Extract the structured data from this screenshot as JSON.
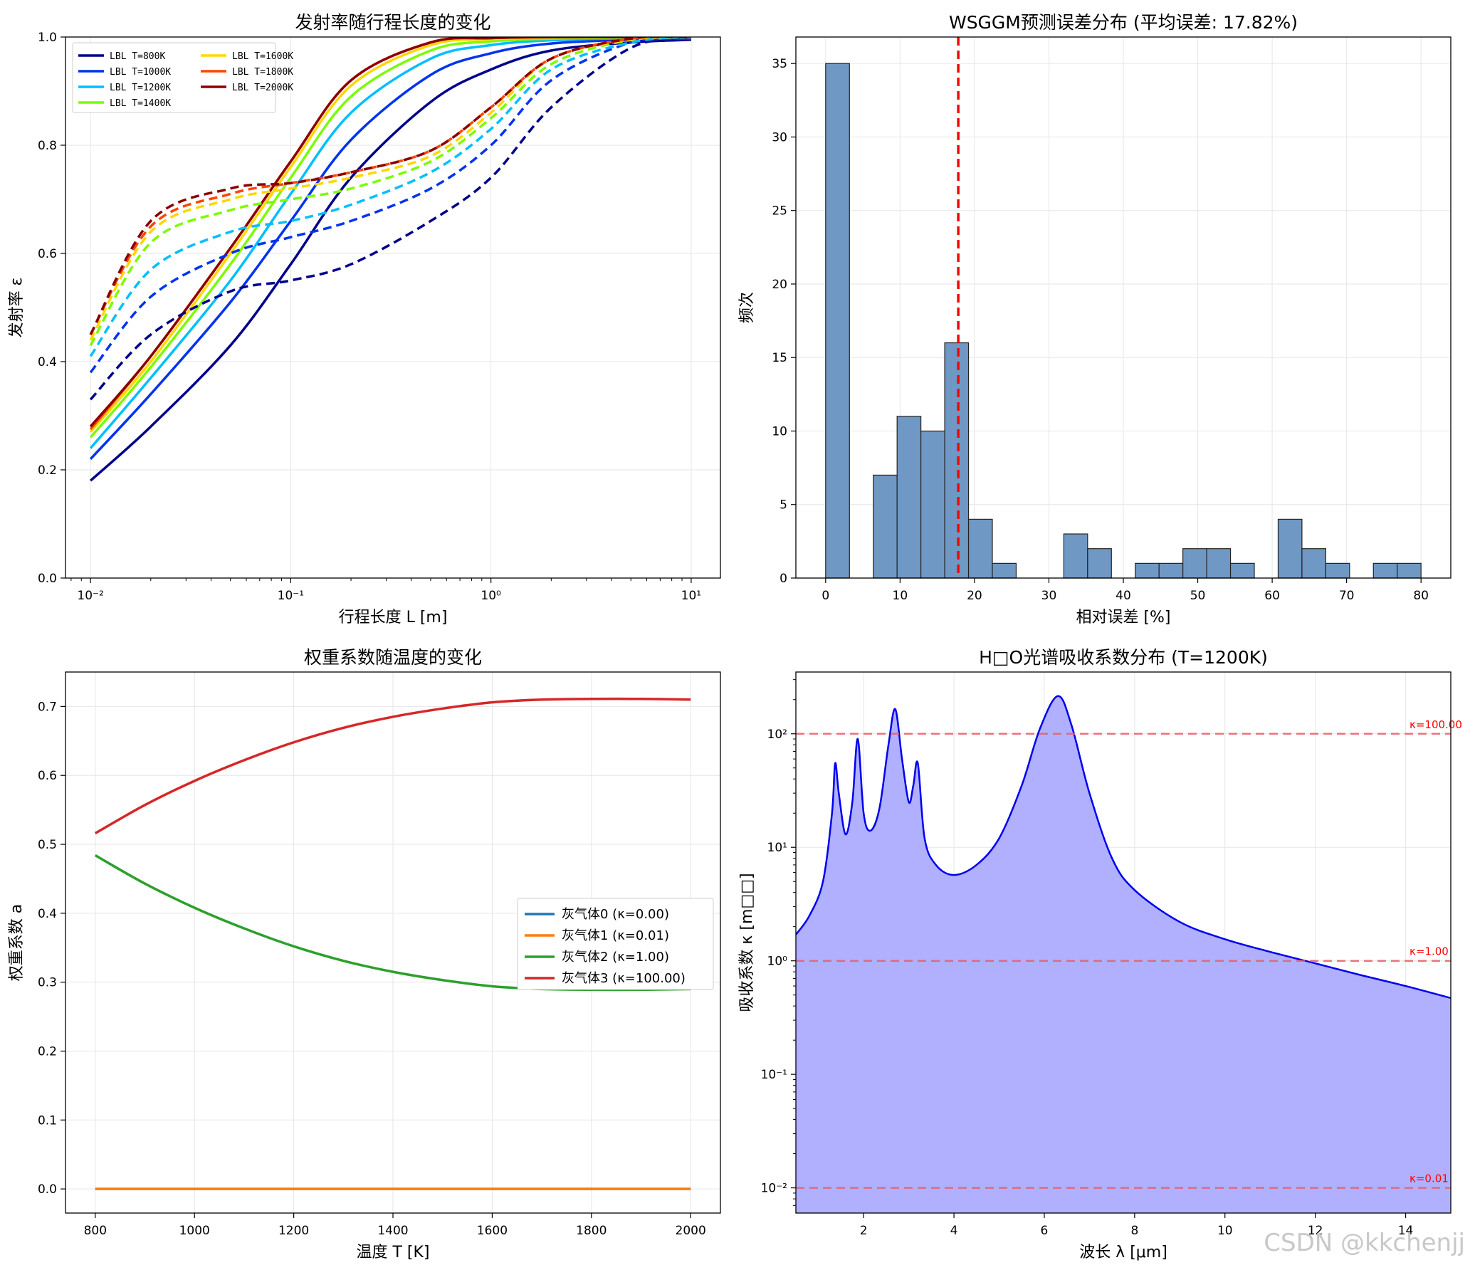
{
  "watermark": "CSDN @kkchenjj",
  "chart_data": [
    {
      "type": "line",
      "title": "发射率随行程长度的变化",
      "xlabel": "行程长度 L [m]",
      "ylabel": "发射率 ε",
      "xscale": "log",
      "xlim": [
        0.0075,
        14
      ],
      "ylim": [
        0,
        1
      ],
      "xticks": [
        0.01,
        0.1,
        1,
        10
      ],
      "xticklabels": [
        "10⁻²",
        "10⁻¹",
        "10⁰",
        "10¹"
      ],
      "yticks": [
        0,
        0.2,
        0.4,
        0.6,
        0.8,
        1.0
      ],
      "yticklabels": [
        "0.0",
        "0.2",
        "0.4",
        "0.6",
        "0.8",
        "1.0"
      ],
      "grid": true,
      "legend_position": "upper-left",
      "legend_columns": 2,
      "x": [
        0.01,
        0.02,
        0.05,
        0.1,
        0.2,
        0.5,
        1,
        2,
        5,
        10
      ],
      "series": [
        {
          "name": "LBL T=800K",
          "color": "#00008b",
          "style": "solid",
          "values": [
            0.18,
            0.28,
            0.43,
            0.58,
            0.74,
            0.88,
            0.94,
            0.975,
            0.99,
            0.995
          ]
        },
        {
          "name": "LBL T=1000K",
          "color": "#0033ee",
          "style": "solid",
          "values": [
            0.22,
            0.34,
            0.51,
            0.66,
            0.81,
            0.93,
            0.97,
            0.988,
            0.995,
            0.997
          ]
        },
        {
          "name": "LBL T=1200K",
          "color": "#00bfff",
          "style": "solid",
          "values": [
            0.24,
            0.37,
            0.55,
            0.71,
            0.86,
            0.96,
            0.985,
            0.994,
            0.998,
            0.999
          ]
        },
        {
          "name": "LBL T=1400K",
          "color": "#7cfc00",
          "style": "solid",
          "values": [
            0.26,
            0.39,
            0.58,
            0.74,
            0.89,
            0.975,
            0.992,
            0.997,
            0.999,
            1.0
          ]
        },
        {
          "name": "LBL T=1600K",
          "color": "#ffd700",
          "style": "solid",
          "values": [
            0.27,
            0.4,
            0.6,
            0.76,
            0.91,
            0.985,
            0.996,
            0.999,
            1.0,
            1.0
          ]
        },
        {
          "name": "LBL T=1800K",
          "color": "#ff4500",
          "style": "solid",
          "values": [
            0.275,
            0.41,
            0.61,
            0.77,
            0.92,
            0.99,
            0.998,
            1.0,
            1.0,
            1.0
          ]
        },
        {
          "name": "LBL T=2000K",
          "color": "#8b0000",
          "style": "solid",
          "values": [
            0.28,
            0.41,
            0.61,
            0.77,
            0.92,
            0.99,
            0.998,
            1.0,
            1.0,
            1.0
          ]
        },
        {
          "name": "",
          "color": "#00008b",
          "style": "dashed",
          "values": [
            0.33,
            0.45,
            0.53,
            0.55,
            0.58,
            0.66,
            0.74,
            0.87,
            0.98,
            1.0
          ]
        },
        {
          "name": "",
          "color": "#0033ee",
          "style": "dashed",
          "values": [
            0.38,
            0.52,
            0.6,
            0.63,
            0.66,
            0.72,
            0.8,
            0.92,
            0.99,
            1.0
          ]
        },
        {
          "name": "",
          "color": "#00bfff",
          "style": "dashed",
          "values": [
            0.41,
            0.57,
            0.64,
            0.66,
            0.69,
            0.75,
            0.83,
            0.94,
            0.99,
            1.0
          ]
        },
        {
          "name": "",
          "color": "#7cfc00",
          "style": "dashed",
          "values": [
            0.43,
            0.62,
            0.68,
            0.7,
            0.72,
            0.77,
            0.85,
            0.95,
            0.995,
            1.0
          ]
        },
        {
          "name": "",
          "color": "#ffd700",
          "style": "dashed",
          "values": [
            0.44,
            0.64,
            0.7,
            0.72,
            0.74,
            0.78,
            0.86,
            0.96,
            0.995,
            1.0
          ]
        },
        {
          "name": "",
          "color": "#ff4500",
          "style": "dashed",
          "values": [
            0.45,
            0.65,
            0.71,
            0.73,
            0.75,
            0.79,
            0.87,
            0.96,
            0.997,
            1.0
          ]
        },
        {
          "name": "",
          "color": "#8b0000",
          "style": "dashed",
          "values": [
            0.45,
            0.66,
            0.72,
            0.73,
            0.75,
            0.79,
            0.87,
            0.96,
            0.997,
            1.0
          ]
        }
      ]
    },
    {
      "type": "bar",
      "title": "WSGGM预测误差分布 (平均误差: 17.82%)",
      "xlabel": "相对误差 [%]",
      "ylabel": "频次",
      "xlim": [
        -4,
        84
      ],
      "ylim": [
        0,
        36.8
      ],
      "xticks": [
        0,
        10,
        20,
        30,
        40,
        50,
        60,
        70,
        80
      ],
      "yticks": [
        0,
        5,
        10,
        15,
        20,
        25,
        30,
        35
      ],
      "grid": true,
      "bar_color": "#6f99c4",
      "bin_width": 3.2,
      "bin_starts": [
        0,
        3.2,
        6.4,
        9.6,
        12.8,
        16.0,
        19.2,
        22.4,
        25.6,
        28.8,
        32.0,
        35.2,
        38.4,
        41.6,
        44.8,
        48.0,
        51.2,
        54.4,
        57.6,
        60.8,
        64.0,
        67.2,
        70.4,
        73.6,
        76.8
      ],
      "values": [
        35,
        0,
        7,
        11,
        10,
        16,
        4,
        1,
        0,
        0,
        3,
        2,
        0,
        1,
        1,
        2,
        2,
        1,
        0,
        4,
        2,
        1,
        0,
        1,
        1
      ],
      "mean_line": {
        "value": 17.82,
        "color": "#ff0000",
        "style": "dashed"
      }
    },
    {
      "type": "line",
      "title": "权重系数随温度的变化",
      "xlabel": "温度 T [K]",
      "ylabel": "权重系数 a",
      "xlim": [
        740,
        2060
      ],
      "ylim": [
        -0.035,
        0.75
      ],
      "xticks": [
        800,
        1000,
        1200,
        1400,
        1600,
        1800,
        2000
      ],
      "yticks": [
        0,
        0.1,
        0.2,
        0.3,
        0.4,
        0.5,
        0.6,
        0.7
      ],
      "yticklabels": [
        "0.0",
        "0.1",
        "0.2",
        "0.3",
        "0.4",
        "0.5",
        "0.6",
        "0.7"
      ],
      "grid": true,
      "legend_position": "center-right",
      "x": [
        800,
        900,
        1000,
        1100,
        1200,
        1300,
        1400,
        1500,
        1600,
        1700,
        1800,
        1900,
        2000
      ],
      "series": [
        {
          "name": "灰气体0 (κ=0.00)",
          "color": "#1f77b4",
          "values": [
            0,
            0,
            0,
            0,
            0,
            0,
            0,
            0,
            0,
            0,
            0,
            0,
            0
          ]
        },
        {
          "name": "灰气体1 (κ=0.01)",
          "color": "#ff7f0e",
          "values": [
            0,
            0,
            0,
            0,
            0,
            0,
            0,
            0,
            0,
            0,
            0,
            0,
            0
          ]
        },
        {
          "name": "灰气体2 (κ=1.00)",
          "color": "#2ca02c",
          "values": [
            0.484,
            0.443,
            0.408,
            0.378,
            0.352,
            0.331,
            0.315,
            0.303,
            0.294,
            0.29,
            0.289,
            0.289,
            0.29
          ]
        },
        {
          "name": "灰气体3 (κ=100.00)",
          "color": "#d62728",
          "values": [
            0.516,
            0.557,
            0.592,
            0.622,
            0.648,
            0.669,
            0.685,
            0.697,
            0.706,
            0.71,
            0.711,
            0.711,
            0.71
          ]
        }
      ]
    },
    {
      "type": "area",
      "title": "H□O光谱吸收系数分布 (T=1200K)",
      "xlabel": "波长 λ [μm]",
      "ylabel": "吸收系数 κ [m□□]",
      "yscale": "log",
      "xlim": [
        0.5,
        15
      ],
      "ylim": [
        0.006,
        350
      ],
      "xticks": [
        2,
        4,
        6,
        8,
        10,
        12,
        14
      ],
      "yticks": [
        0.01,
        0.1,
        1,
        10,
        100
      ],
      "yticklabels": [
        "10⁻²",
        "10⁻¹",
        "10⁰",
        "10¹",
        "10²"
      ],
      "grid": true,
      "line_color": "#0000ee",
      "fill_color": "#b0b0ff",
      "x": [
        0.5,
        0.8,
        1.1,
        1.3,
        1.37,
        1.45,
        1.6,
        1.75,
        1.87,
        2.0,
        2.15,
        2.35,
        2.55,
        2.7,
        2.85,
        3.0,
        3.1,
        3.2,
        3.35,
        3.6,
        4.0,
        4.5,
        5.0,
        5.5,
        5.9,
        6.3,
        6.6,
        7.0,
        7.5,
        8.0,
        9.0,
        10.0,
        11.0,
        12.0,
        13.0,
        14.0,
        15.0
      ],
      "values": [
        1.7,
        2.5,
        5.0,
        20,
        55,
        30,
        13,
        25,
        90,
        20,
        14,
        22,
        80,
        165,
        60,
        25,
        35,
        55,
        12,
        7,
        5.7,
        7,
        12,
        35,
        110,
        215,
        120,
        30,
        8,
        4.2,
        2.2,
        1.55,
        1.2,
        0.95,
        0.75,
        0.6,
        0.47
      ],
      "reference_lines": [
        {
          "value": 100,
          "label": "κ=100.00"
        },
        {
          "value": 1,
          "label": "κ=1.00"
        },
        {
          "value": 0.01,
          "label": "κ=0.01"
        }
      ]
    }
  ]
}
